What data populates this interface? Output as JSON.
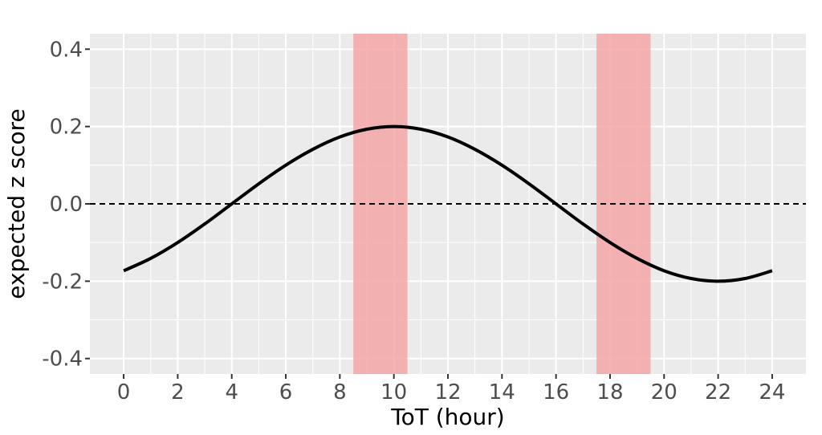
{
  "chart_data": {
    "type": "line",
    "xlabel": "ToT (hour)",
    "ylabel": "expected z score",
    "xlim": [
      -1.25,
      25.25
    ],
    "ylim": [
      -0.44,
      0.44
    ],
    "x_ticks": [
      0,
      2,
      4,
      6,
      8,
      10,
      12,
      14,
      16,
      18,
      20,
      22,
      24
    ],
    "x_tick_labels": [
      "0",
      "2",
      "4",
      "6",
      "8",
      "10",
      "12",
      "14",
      "16",
      "18",
      "20",
      "22",
      "24"
    ],
    "y_ticks": [
      0.4,
      0.2,
      0.0,
      -0.2,
      -0.4
    ],
    "y_tick_labels": [
      "0.4",
      "0.2",
      "0.0",
      "-0.2",
      "-0.4"
    ],
    "grid": true,
    "series": [
      {
        "style": "solid",
        "color": "#000000",
        "x": [
          0,
          1,
          2,
          3,
          4,
          5,
          6,
          7,
          8,
          9,
          10,
          11,
          12,
          13,
          14,
          15,
          16,
          17,
          18,
          19,
          20,
          21,
          22,
          23,
          24
        ],
        "y": [
          -0.173,
          -0.141,
          -0.1,
          -0.052,
          0.0,
          0.052,
          0.1,
          0.141,
          0.173,
          0.193,
          0.2,
          0.193,
          0.173,
          0.141,
          0.1,
          0.052,
          0.0,
          -0.052,
          -0.1,
          -0.141,
          -0.173,
          -0.193,
          -0.2,
          -0.193,
          -0.173
        ]
      }
    ],
    "reference_line": {
      "y": 0,
      "style": "dashed",
      "color": "#000000"
    },
    "shaded_bands": [
      {
        "x_start": 8.5,
        "x_end": 10.5,
        "color": "#f4a6a6"
      },
      {
        "x_start": 17.5,
        "x_end": 19.5,
        "color": "#f4a6a6"
      }
    ],
    "colors": {
      "panel_background": "#ebebeb",
      "grid": "#ffffff",
      "band": "#f4a6a6"
    }
  }
}
